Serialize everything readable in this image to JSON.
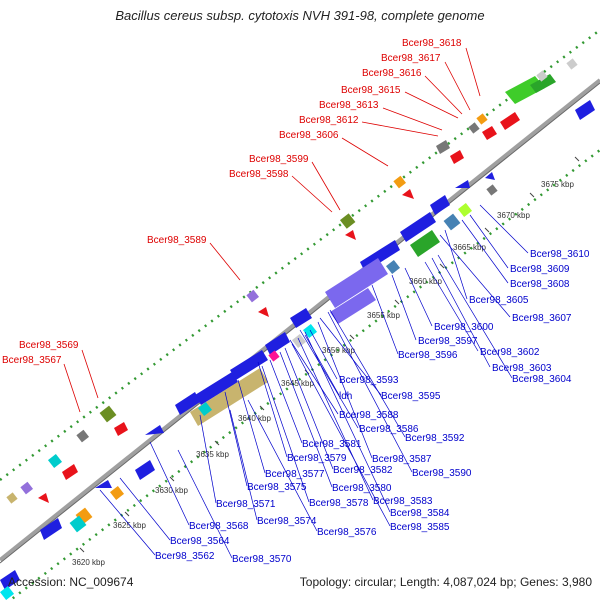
{
  "title": "Bacillus cereus subsp. cytotoxis NVH 391-98, complete genome",
  "footer": {
    "accession": "Accession: NC_009674",
    "summary": "Topology: circular; Length: 4,087,024 bp; Genes: 3,980"
  },
  "colors": {
    "red_label": "#dd0000",
    "blue_label": "#0000cc",
    "backbone": "#999999"
  },
  "ticks": [
    {
      "text": "3620 kbp"
    },
    {
      "text": "3625 kbp"
    },
    {
      "text": "3630 kbp"
    },
    {
      "text": "3635 kbp"
    },
    {
      "text": "3640 kbp"
    },
    {
      "text": "3645 kbp"
    },
    {
      "text": "3650 kbp"
    },
    {
      "text": "3655 kbp"
    },
    {
      "text": "3660 kbp"
    },
    {
      "text": "3665 kbp"
    },
    {
      "text": "3670 kbp"
    },
    {
      "text": "3675 kbp"
    }
  ],
  "labels_red": [
    "Bcer98_3618",
    "Bcer98_3617",
    "Bcer98_3616",
    "Bcer98_3615",
    "Bcer98_3613",
    "Bcer98_3612",
    "Bcer98_3606",
    "Bcer98_3599",
    "Bcer98_3598",
    "Bcer98_3589",
    "Bcer98_3569",
    "Bcer98_3567"
  ],
  "labels_blue": [
    "Bcer98_3610",
    "Bcer98_3609",
    "Bcer98_3608",
    "Bcer98_3605",
    "Bcer98_3607",
    "Bcer98_3600",
    "Bcer98_3597",
    "Bcer98_3602",
    "Bcer98_3596",
    "Bcer98_3603",
    "Bcer98_3604",
    "Bcer98_3593",
    "Bcer98_3595",
    "ldh",
    "Bcer98_3588",
    "Bcer98_3586",
    "Bcer98_3592",
    "Bcer98_3581",
    "Bcer98_3587",
    "Bcer98_3579",
    "Bcer98_3582",
    "Bcer98_3590",
    "Bcer98_3577",
    "Bcer98_3580",
    "Bcer98_3575",
    "Bcer98_3578",
    "Bcer98_3583",
    "Bcer98_3571",
    "Bcer98_3584",
    "Bcer98_3574",
    "Bcer98_3585",
    "Bcer98_3568",
    "Bcer98_3576",
    "Bcer98_3564",
    "Bcer98_3562",
    "Bcer98_3570"
  ]
}
